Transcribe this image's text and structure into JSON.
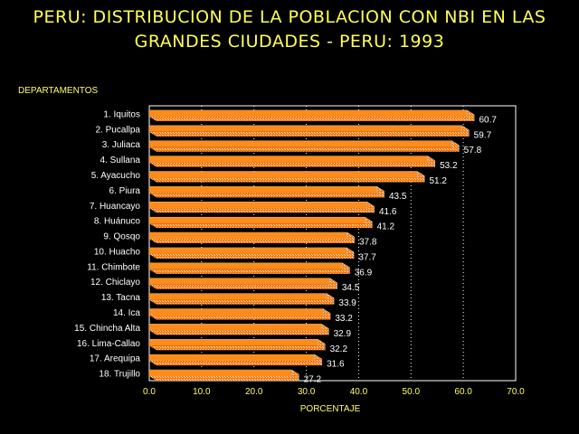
{
  "title_line1": "PERU: DISTRIBUCION DE LA POBLACION CON NBI EN LAS",
  "title_line2": "GRANDES CIUDADES - PERU: 1993",
  "chart_data": {
    "type": "bar",
    "orientation": "horizontal",
    "ylabel": "DEPARTAMENTOS",
    "xlabel": "PORCENTAJE",
    "xlim": [
      0,
      70
    ],
    "xticks": [
      "0.0",
      "10.0",
      "20.0",
      "30.0",
      "40.0",
      "50.0",
      "60.0",
      "70.0"
    ],
    "grid": "vertical dotted",
    "categories": [
      "1. Iquitos",
      "2. Pucallpa",
      "3. Juliaca",
      "4. Sullana",
      "5. Ayacucho",
      "6. Piura",
      "7. Huancayo",
      "8. Huánuco",
      "9. Qosqo",
      "10. Huacho",
      "11. Chimbote",
      "12. Chiclayo",
      "13. Tacna",
      "14. Ica",
      "15. Chincha Alta",
      "16. Lima-Callao",
      "17. Arequipa",
      "18. Trujillo"
    ],
    "values": [
      60.7,
      59.7,
      57.8,
      53.2,
      51.2,
      43.5,
      41.6,
      41.2,
      37.8,
      37.7,
      36.9,
      34.5,
      33.9,
      33.2,
      32.9,
      32.2,
      31.6,
      27.2
    ],
    "value_labels": [
      "60.7",
      "59.7",
      "57.8",
      "53.2",
      "51.2",
      "43.5",
      "41.6",
      "41.2",
      "37.8",
      "37.7",
      "36.9",
      "34.5",
      "33.9",
      "33.2",
      "32.9",
      "32.2",
      "31.6",
      "27.2"
    ],
    "bar_color": "#ff8c1a",
    "bar_top_color": "#ff9933",
    "bar_side_color": "#c0c0c0"
  }
}
